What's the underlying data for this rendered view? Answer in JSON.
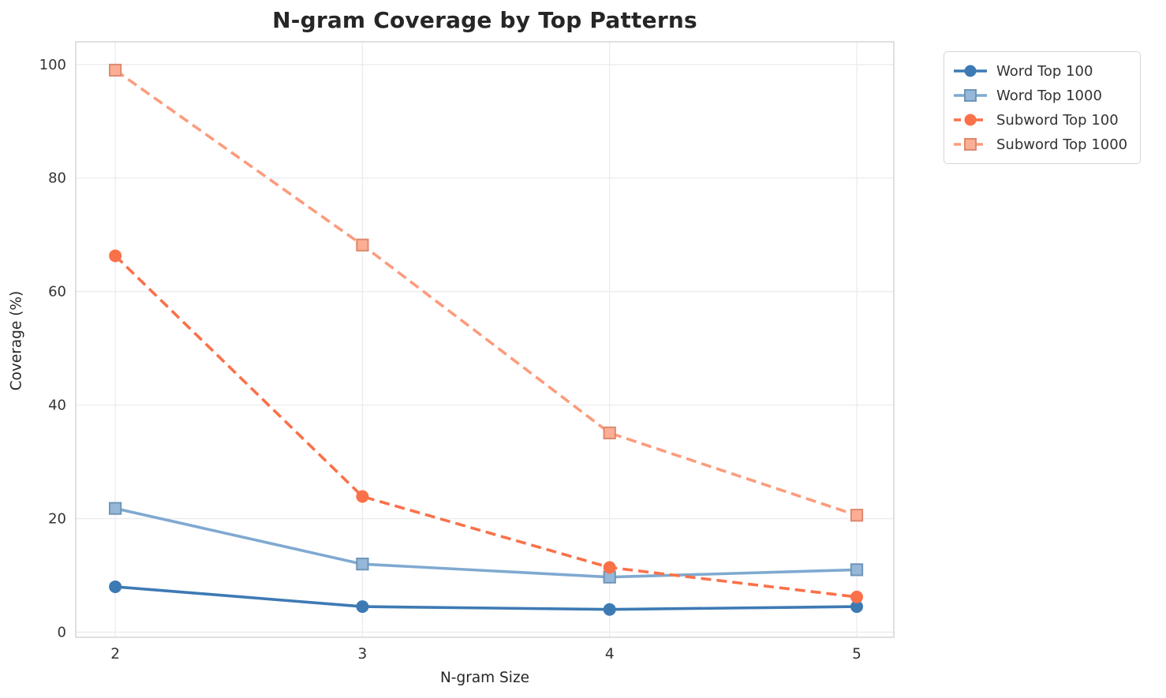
{
  "chart_data": {
    "type": "line",
    "title": "N-gram Coverage by Top Patterns",
    "xlabel": "N-gram Size",
    "ylabel": "Coverage (%)",
    "x": [
      2,
      3,
      4,
      5
    ],
    "x_ticks": [
      2,
      3,
      4,
      5
    ],
    "y_ticks": [
      0,
      20,
      40,
      60,
      80,
      100
    ],
    "xlim": [
      1.84,
      5.15
    ],
    "ylim": [
      -0.9,
      104
    ],
    "grid": true,
    "legend_position": "outside-upper-right",
    "series": [
      {
        "name": "Word Top 100",
        "values": [
          8.0,
          4.5,
          4.0,
          4.5
        ],
        "color": "#3D7AB4",
        "marker": "circle",
        "line_style": "solid"
      },
      {
        "name": "Word Top 1000",
        "values": [
          21.8,
          12.0,
          9.7,
          11.0
        ],
        "color": "#7FA9D0",
        "marker": "square",
        "line_style": "solid"
      },
      {
        "name": "Subword Top 100",
        "values": [
          66.3,
          23.9,
          11.4,
          6.2
        ],
        "color": "#FA7149",
        "marker": "circle",
        "line_style": "dashed"
      },
      {
        "name": "Subword Top 1000",
        "values": [
          99.0,
          68.2,
          35.1,
          20.6
        ],
        "color": "#FB9C7D",
        "marker": "square",
        "line_style": "dashed"
      }
    ]
  },
  "colors": {
    "background": "#FFFFFF",
    "grid": "#ECECF0",
    "spine": "#D2D2D2",
    "tick_label": "#333333",
    "axis_label": "#262626",
    "title": "#262626",
    "legend_border": "#D5D5D5",
    "legend_text": "#333333"
  }
}
